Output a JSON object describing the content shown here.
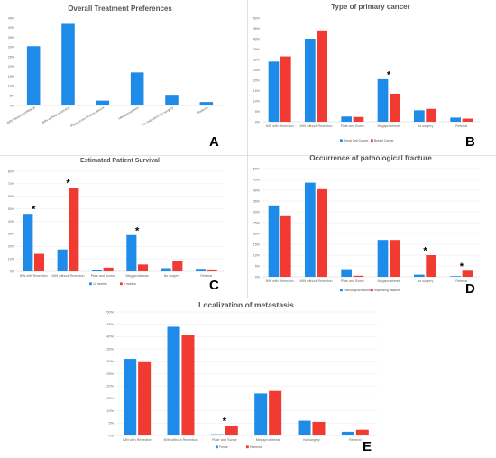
{
  "colors": {
    "blue": "#1f8be8",
    "red": "#f03a32"
  },
  "chart_data": [
    {
      "id": "A",
      "type": "bar",
      "title": "Overall Treatment Preferences",
      "panel_label": "A",
      "categories": [
        "IMN Resection/PMMA",
        "IMN without resection",
        "Plate-screw fixation device",
        "Megaprosthesis",
        "No indication for surgery",
        "Referral"
      ],
      "series": [
        {
          "name": "",
          "values": [
            30.5,
            42,
            2.5,
            17,
            5.5,
            1.8
          ]
        }
      ],
      "ylim": [
        0,
        45
      ],
      "yticks": [
        0,
        5,
        10,
        15,
        20,
        25,
        30,
        35,
        40,
        45
      ],
      "yticklabels": [
        "0%",
        "5%",
        "10%",
        "15%",
        "20%",
        "25%",
        "30%",
        "35%",
        "40%",
        "45%"
      ],
      "significant": [],
      "legend": "none",
      "grid": false
    },
    {
      "id": "B",
      "type": "bar",
      "title": "Type of primary cancer",
      "panel_label": "B",
      "categories": [
        "IMN with Resection",
        "IMN without Resection",
        "Plate and Screw",
        "Megaprosthesis",
        "No surgery",
        "Referral"
      ],
      "series": [
        {
          "name": "Renal Cell Cancer",
          "values": [
            29,
            40,
            2.5,
            20.5,
            5.5,
            2
          ]
        },
        {
          "name": "Breast Cancer",
          "values": [
            31.5,
            44,
            2.3,
            13.5,
            6.2,
            1.5
          ]
        }
      ],
      "ylim": [
        0,
        50
      ],
      "yticks": [
        0,
        5,
        10,
        15,
        20,
        25,
        30,
        35,
        40,
        45,
        50
      ],
      "yticklabels": [
        "0%",
        "5%",
        "10%",
        "15%",
        "20%",
        "25%",
        "30%",
        "35%",
        "40%",
        "45%",
        "50%"
      ],
      "significant": [
        3
      ],
      "legend": "bottom",
      "grid": false
    },
    {
      "id": "C",
      "type": "bar",
      "title": "Estimated Patient Survival",
      "panel_label": "C",
      "categories": [
        "IMN with Resection",
        "IMN without Resection",
        "Plate and Screw",
        "Megaprosthesis",
        "No surgery",
        "Referral"
      ],
      "series": [
        {
          "name": "12 months",
          "values": [
            46,
            17.5,
            1.2,
            29,
            2.5,
            2
          ]
        },
        {
          "name": "6 months",
          "values": [
            14,
            67,
            3,
            5.5,
            8.5,
            1.5
          ]
        }
      ],
      "ylim": [
        0,
        80
      ],
      "yticks": [
        0,
        10,
        20,
        30,
        40,
        50,
        60,
        70,
        80
      ],
      "yticklabels": [
        "0%",
        "10%",
        "20%",
        "30%",
        "40%",
        "50%",
        "60%",
        "70%",
        "80%"
      ],
      "significant": [
        0,
        1,
        3
      ],
      "legend": "bottom",
      "grid": true
    },
    {
      "id": "D",
      "type": "bar",
      "title": "Occurrence of pathological fracture",
      "panel_label": "D",
      "categories": [
        "IMN with Resection",
        "IMN without Resection",
        "Plate and Screw",
        "Megaprosthesis",
        "No surgery",
        "Referral"
      ],
      "series": [
        {
          "name": "Pathological fracture",
          "values": [
            33,
            43.5,
            3.5,
            17,
            1,
            0.3
          ]
        },
        {
          "name": "Impending fracture",
          "values": [
            28,
            40.5,
            0.5,
            17,
            10,
            2.8
          ]
        }
      ],
      "ylim": [
        0,
        50
      ],
      "yticks": [
        0,
        5,
        10,
        15,
        20,
        25,
        30,
        35,
        40,
        45,
        50
      ],
      "yticklabels": [
        "0%",
        "5%",
        "10%",
        "15%",
        "20%",
        "25%",
        "30%",
        "35%",
        "40%",
        "45%",
        "50%"
      ],
      "significant": [
        4,
        5
      ],
      "legend": "bottom",
      "grid": true
    },
    {
      "id": "E",
      "type": "bar",
      "title": "Localization of metastasis",
      "panel_label": "E",
      "categories": [
        "IMN with Resection",
        "IMN without Resection",
        "Plate and Screw",
        "Megaprosthesis",
        "No surgery",
        "Referral"
      ],
      "series": [
        {
          "name": "Femur",
          "values": [
            31,
            44,
            0.5,
            17,
            6,
            1.5
          ]
        },
        {
          "name": "Humerus",
          "values": [
            30,
            40.5,
            4,
            18,
            5.5,
            2.3
          ]
        }
      ],
      "ylim": [
        0,
        50
      ],
      "yticks": [
        0,
        5,
        10,
        15,
        20,
        25,
        30,
        35,
        40,
        45,
        50
      ],
      "yticklabels": [
        "0%",
        "5%",
        "10%",
        "15%",
        "20%",
        "25%",
        "30%",
        "35%",
        "40%",
        "45%",
        "50%"
      ],
      "significant": [
        2
      ],
      "legend": "bottom",
      "grid": true
    }
  ]
}
